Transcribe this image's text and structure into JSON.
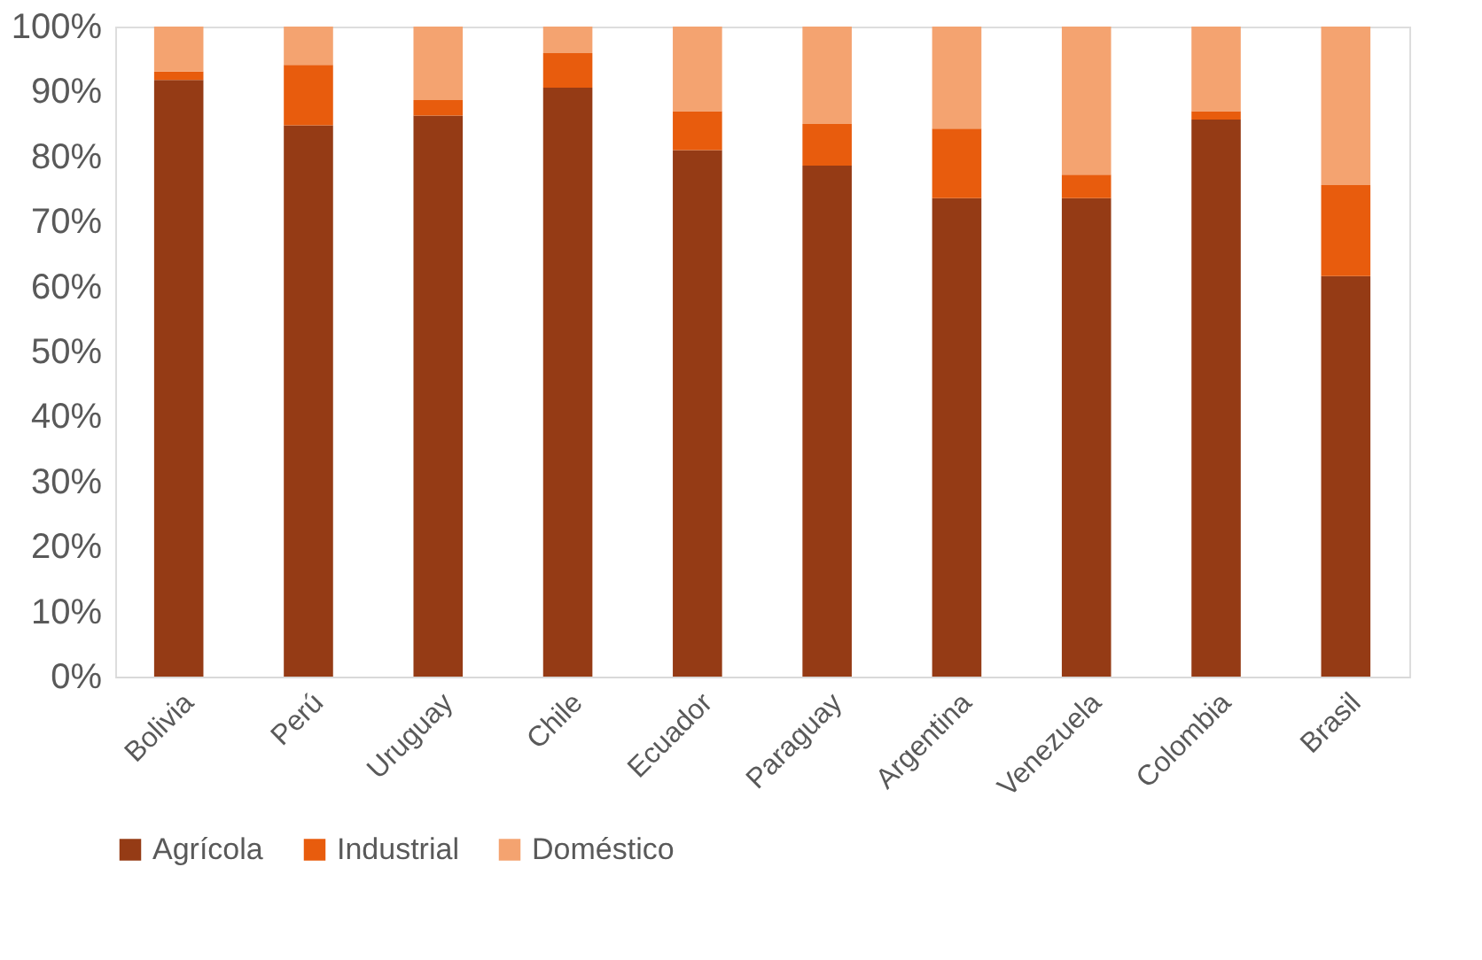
{
  "chart_data": {
    "type": "bar",
    "stacked": true,
    "categories": [
      "Bolivia",
      "Perú",
      "Uruguay",
      "Chile",
      "Ecuador",
      "Paraguay",
      "Argentina",
      "Venezuela",
      "Colombia",
      "Brasil"
    ],
    "series": [
      {
        "name": "Agrícola",
        "color": "#953b15",
        "values": [
          91.8,
          84.8,
          86.3,
          90.6,
          81.0,
          78.6,
          73.6,
          73.6,
          85.7,
          61.6
        ]
      },
      {
        "name": "Industrial",
        "color": "#e85c0d",
        "values": [
          1.3,
          9.3,
          2.4,
          5.3,
          6.0,
          6.4,
          10.7,
          3.6,
          1.3,
          14.0
        ]
      },
      {
        "name": "Doméstico",
        "color": "#f4a370",
        "values": [
          6.9,
          5.9,
          11.3,
          4.1,
          13.0,
          15.0,
          15.7,
          22.8,
          13.0,
          24.4
        ]
      }
    ],
    "ylim": [
      0,
      100
    ],
    "yticks": [
      {
        "value": 0,
        "label": "0%"
      },
      {
        "value": 10,
        "label": "10%"
      },
      {
        "value": 20,
        "label": "20%"
      },
      {
        "value": 30,
        "label": "30%"
      },
      {
        "value": 40,
        "label": "40%"
      },
      {
        "value": 50,
        "label": "50%"
      },
      {
        "value": 60,
        "label": "60%"
      },
      {
        "value": 70,
        "label": "70%"
      },
      {
        "value": 80,
        "label": "80%"
      },
      {
        "value": 90,
        "label": "90%"
      },
      {
        "value": 100,
        "label": "100%"
      }
    ],
    "grid": false,
    "legend": "bottom"
  }
}
